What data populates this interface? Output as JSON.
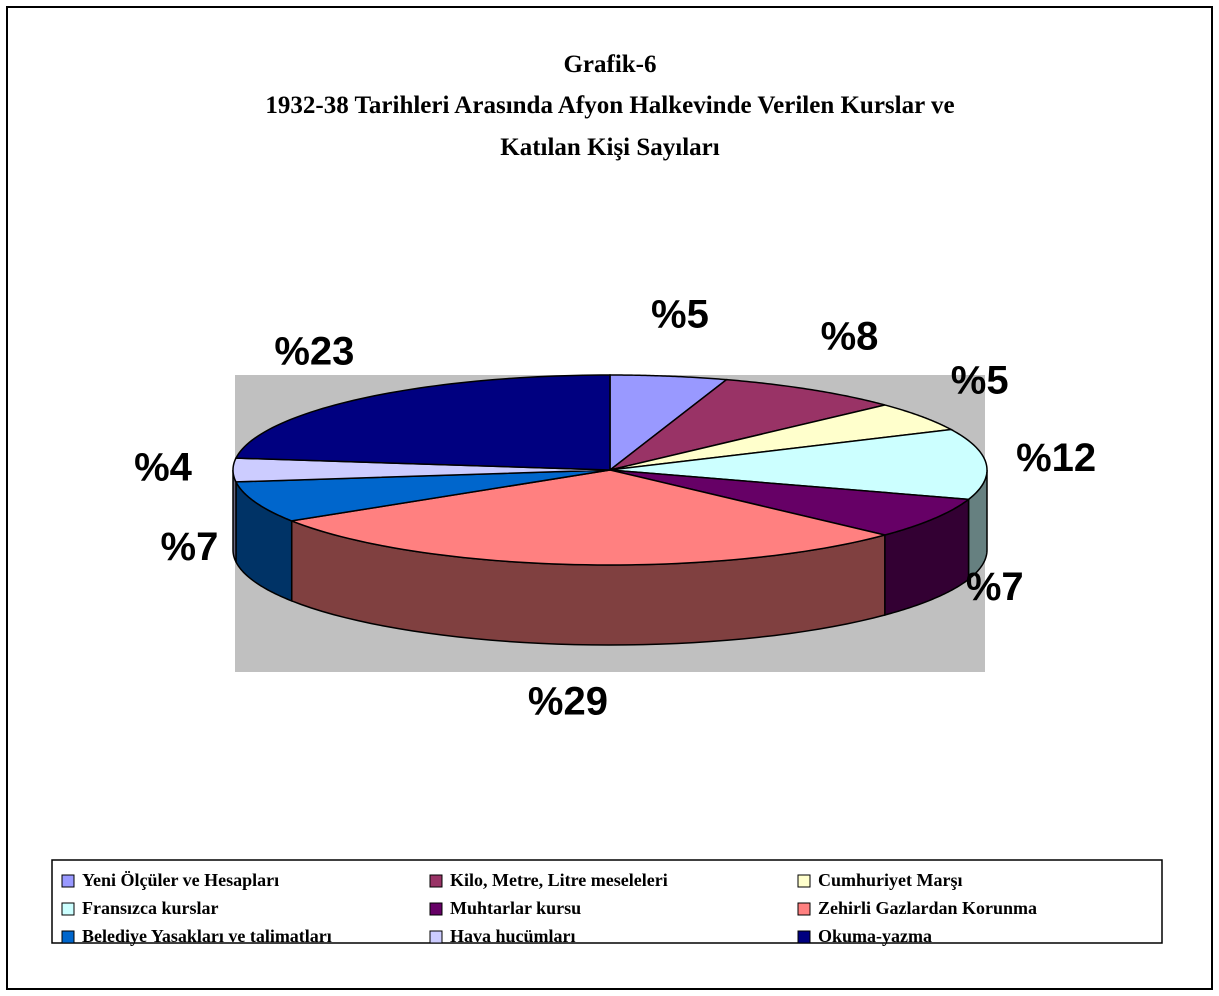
{
  "chart_data": {
    "type": "pie3d",
    "title_lines": [
      "Grafik-6",
      "1932-38 Tarihleri Arasında Afyon Halkevinde Verilen Kurslar ve",
      "Katılan Kişi Sayıları"
    ],
    "categories": [
      "Yeni Ölçüler ve Hesapları",
      "Kilo, Metre, Litre meseleleri",
      "Cumhuriyet Marşı",
      "Fransızca kurslar",
      "Muhtarlar kursu",
      "Zehirli Gazlardan Korunma",
      "Belediye Yasakları ve talimatları",
      "Hava hucümları",
      "Okuma-yazma"
    ],
    "values": [
      5,
      8,
      5,
      12,
      7,
      29,
      7,
      4,
      23
    ],
    "value_labels": [
      "%5",
      "%8",
      "%5",
      "%12",
      "%7",
      "%29",
      "%7",
      "%4",
      "%23"
    ],
    "colors": [
      "#9999ff",
      "#993366",
      "#ffffcc",
      "#ccffff",
      "#660066",
      "#ff8080",
      "#0066cc",
      "#ccccff",
      "#000080"
    ],
    "legend": "bottom"
  }
}
